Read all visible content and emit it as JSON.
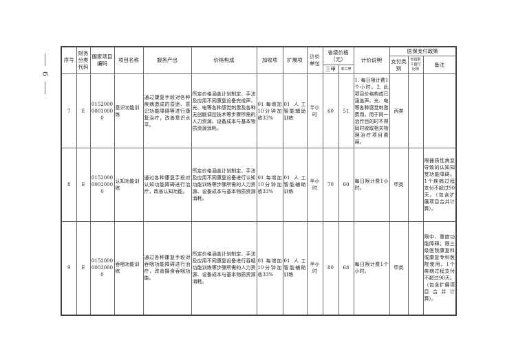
{
  "page_number": "6",
  "header": {
    "seq": "序号",
    "fin_code": "财务分类代码",
    "nat_code": "国家项目编码",
    "name": "项目名称",
    "output": "服务产出",
    "price_comp": "价格构成",
    "surcharge": "加收项",
    "extension": "扩展项",
    "unit": "计价单位",
    "prov_price": "省级价格（元）",
    "tier3a": "三甲",
    "non3a": "非三甲",
    "price_note": "计价说明",
    "insurance": "医保支付政策",
    "pay_class": "支付类别",
    "prov_ratio": "省直职工首付比例",
    "remark": "备注"
  },
  "rows": [
    {
      "seq": "7",
      "fin": "E",
      "code": "015200000010000",
      "name": "意识功能训练",
      "output": "通过康复手段对各种疾病造成的昏迷、意识功能障碍等进行康复治疗，改善意识水平。",
      "price": "所定价格涵盖计划制定、手法及应用不同康复设备完成声、光、电等各种感觉刺激及各种无创脑调控技术等步骤所需的人力资源、设备成本与基本物质资源消耗。",
      "surcharge": "01 每增加10分钟加收33%",
      "ext": "01 人工智能辅助训练",
      "unit": "半小时",
      "p1": "60",
      "p2": "51",
      "note": "1. 每日限计费1个小时。2. 此项目价格构成已涵盖声、光、电等各种感觉刺激费用。用于同一治疗目的时不得同时收取相关物理治疗项目费用。",
      "class": "丙类",
      "ratio": "",
      "remark": ""
    },
    {
      "seq": "8",
      "fin": "E",
      "code": "015200000020000",
      "name": "认知功能训练",
      "output": "通过各种康复手段对认知功能障碍进行治疗，改善认知功能。",
      "price": "所定价格涵盖计划制定、手法及应用不同康复设备进行认知功能训练等步骤所需的人力资源、设备成本与基本物质资源消耗。",
      "surcharge": "01 每增加10分钟加收33%",
      "ext": "01 人工智能辅助训练",
      "unit": "半小时",
      "p1": "70",
      "p2": "60",
      "note": "每日限计费1小时。",
      "class": "甲类",
      "ratio": "",
      "remark": "限器质性病变导致的认知知觉功能障碍。1个疾病过程支付不超过90天。（包含扩展项目合并计算）。"
    },
    {
      "seq": "9",
      "fin": "E",
      "code": "015200000030000",
      "name": "吞咽功能训练",
      "output": "通过各种康复手段对吞咽功能障碍进行治疗，改善摄食吞咽功能。",
      "price": "所定价格涵盖计划制定、手法及应用不同康复设备进行吞咽功能训练等步骤所需的人力资源、设备成本与基本物质资源消耗。",
      "surcharge": "01 每增加10分钟加收33%",
      "ext": "01 人工智能辅助训练",
      "unit": "半小时",
      "p1": "80",
      "p2": "68",
      "note": "每日限计费1个小时。",
      "class": "甲类",
      "ratio": "",
      "remark": "限中、重度功能障碍；限三级医院康复科或康复专科医院使用。1个疾病过程支付不超过90天。（包含扩展项目合并计算）。"
    }
  ]
}
